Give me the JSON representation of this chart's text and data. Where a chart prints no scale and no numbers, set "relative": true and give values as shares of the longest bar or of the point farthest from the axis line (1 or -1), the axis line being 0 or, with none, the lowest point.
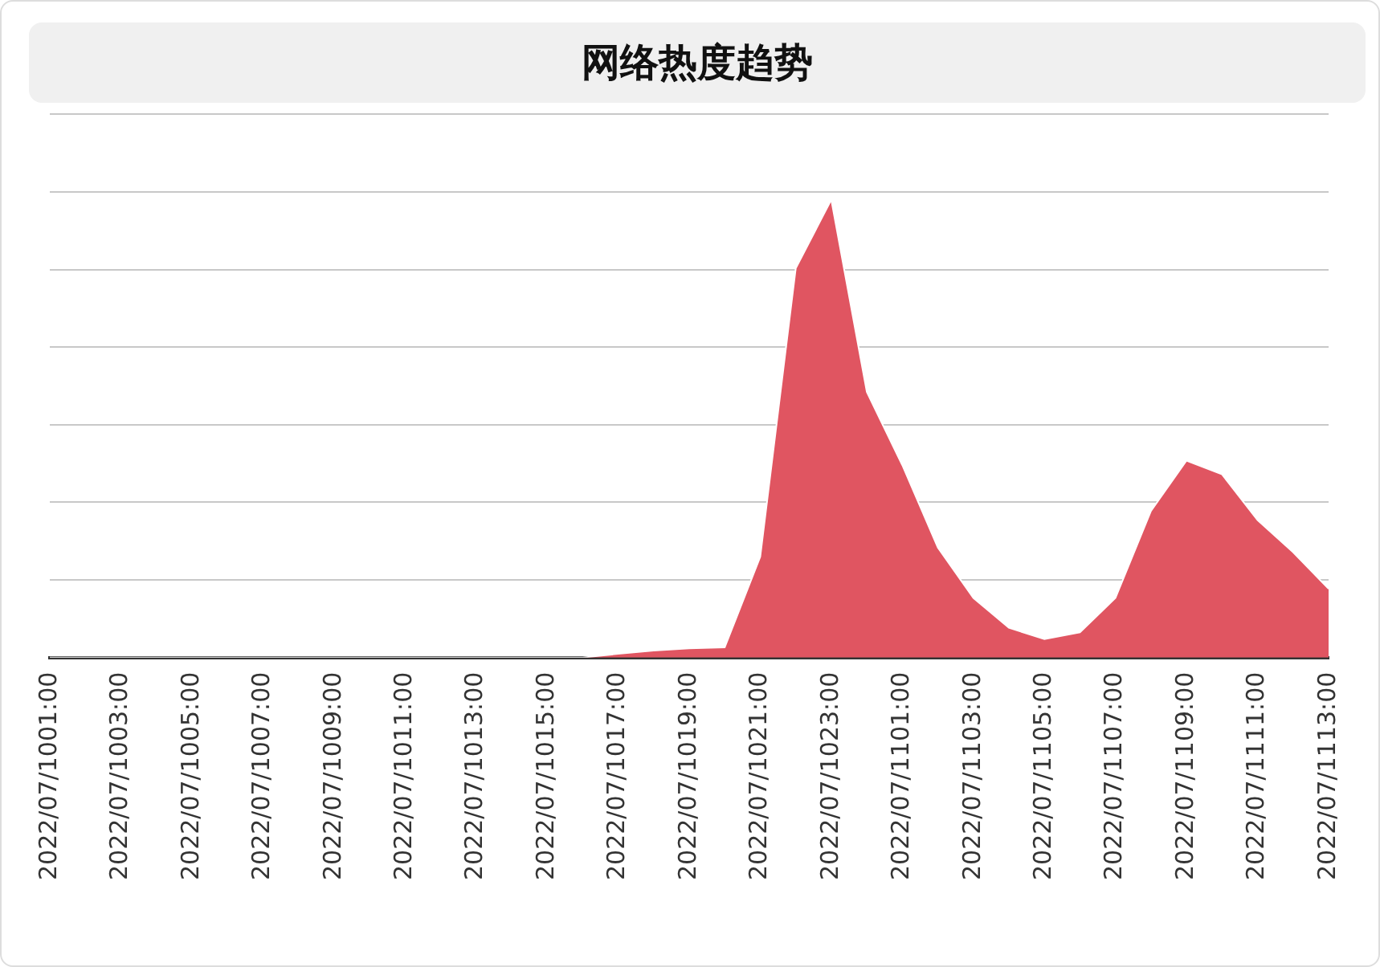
{
  "chart_data": {
    "type": "area",
    "title": "网络热度趋势",
    "relative": true,
    "grid": "y",
    "legend": false,
    "tick_labels": "x",
    "categories": [
      "2022/07/1001:00",
      null,
      "2022/07/1003:00",
      null,
      "2022/07/1005:00",
      null,
      "2022/07/1007:00",
      null,
      "2022/07/1009:00",
      null,
      "2022/07/1011:00",
      null,
      "2022/07/1013:00",
      null,
      "2022/07/1015:00",
      null,
      "2022/07/1017:00",
      null,
      "2022/07/1019:00",
      null,
      "2022/07/1021:00",
      null,
      "2022/07/1023:00",
      null,
      "2022/07/1101:00",
      null,
      "2022/07/1103:00",
      null,
      "2022/07/1105:00",
      null,
      "2022/07/1107:00",
      null,
      "2022/07/1109:00",
      null,
      "2022/07/1111:00",
      null,
      "2022/07/1113:00"
    ],
    "series": [
      {
        "color": "#e05561",
        "values": [
          0,
          0,
          0,
          0,
          0,
          0,
          0,
          0,
          0,
          0,
          0,
          0,
          0,
          0,
          0,
          0,
          0.008,
          0.015,
          0.02,
          0.022,
          0.22,
          0.85,
          1,
          0.58,
          0.42,
          0.24,
          0.13,
          0.065,
          0.04,
          0.055,
          0.13,
          0.32,
          0.43,
          0.4,
          0.3,
          0.23,
          0.15
        ]
      }
    ]
  }
}
